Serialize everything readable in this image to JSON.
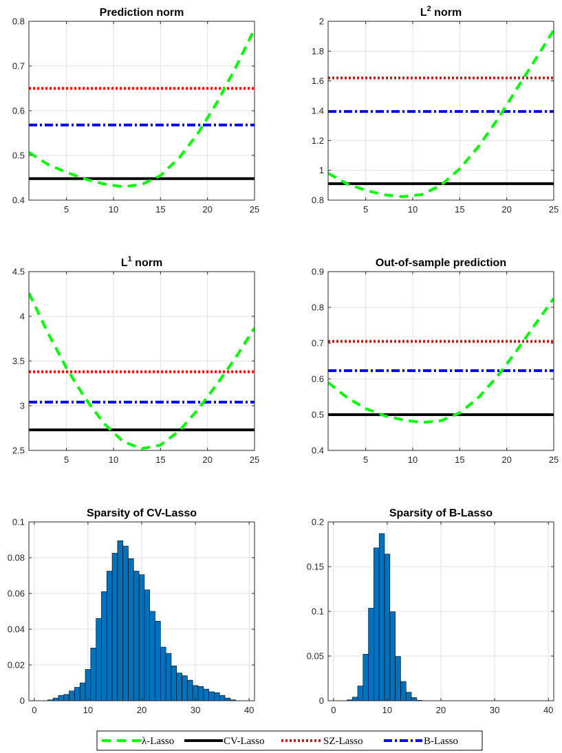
{
  "colors": {
    "lambda_lasso": "#00ff00",
    "cv_lasso": "#000000",
    "sz_lasso": "#ff0000",
    "b_lasso": "#0000ff",
    "histogram_fill": "#0072bd",
    "grid": "#dfdfdf",
    "axis": "#262626"
  },
  "legend": {
    "placement": "bottom-center",
    "entries": [
      {
        "label": "λ-Lasso",
        "style": "dashed",
        "color": "#00ff00"
      },
      {
        "label": "CV-Lasso",
        "style": "solid",
        "color": "#000000"
      },
      {
        "label": "SZ-Lasso",
        "style": "dotted",
        "color": "#ff0000"
      },
      {
        "label": "B-Lasso",
        "style": "dashdot",
        "color": "#0000ff"
      }
    ]
  },
  "chart_data": [
    {
      "id": "prediction-norm",
      "type": "line",
      "title": "Prediction norm",
      "xlim": [
        1,
        25
      ],
      "ylim": [
        0.4,
        0.8
      ],
      "xticks": [
        5,
        10,
        15,
        20,
        25
      ],
      "yticks": [
        0.4,
        0.5,
        0.6,
        0.7,
        0.8
      ],
      "ytick_labels": [
        "0.4",
        "0.5",
        "0.6",
        "0.7",
        "0.8"
      ],
      "grid": true,
      "lambda_curve": {
        "x": [
          1,
          3,
          5,
          7,
          9,
          11,
          13,
          15,
          17,
          19,
          21,
          23,
          25
        ],
        "y": [
          0.507,
          0.48,
          0.462,
          0.447,
          0.436,
          0.43,
          0.435,
          0.455,
          0.495,
          0.55,
          0.618,
          0.697,
          0.783
        ]
      },
      "hlines": {
        "cv_lasso": 0.448,
        "sz_lasso": 0.65,
        "b_lasso": 0.568
      }
    },
    {
      "id": "l2-norm",
      "type": "line",
      "title_base": "L",
      "title_sup": "2",
      "title_rest": " norm",
      "xlim": [
        1,
        25
      ],
      "ylim": [
        0.8,
        2.0
      ],
      "xticks": [
        5,
        10,
        15,
        20,
        25
      ],
      "yticks": [
        0.8,
        1.0,
        1.2,
        1.4,
        1.6,
        1.8,
        2.0
      ],
      "ytick_labels": [
        "0.8",
        "1",
        "1.2",
        "1.4",
        "1.6",
        "1.8",
        "2"
      ],
      "grid": true,
      "lambda_curve": {
        "x": [
          1,
          3,
          5,
          7,
          9,
          11,
          13,
          15,
          17,
          19,
          21,
          23,
          25
        ],
        "y": [
          0.98,
          0.91,
          0.865,
          0.835,
          0.823,
          0.838,
          0.9,
          1.01,
          1.16,
          1.34,
          1.54,
          1.74,
          1.94
        ]
      },
      "hlines": {
        "cv_lasso": 0.91,
        "sz_lasso": 1.62,
        "b_lasso": 1.395
      }
    },
    {
      "id": "l1-norm",
      "type": "line",
      "title_base": "L",
      "title_sup": "1",
      "title_rest": " norm",
      "xlim": [
        1,
        25
      ],
      "ylim": [
        2.5,
        4.5
      ],
      "xticks": [
        5,
        10,
        15,
        20,
        25
      ],
      "yticks": [
        2.5,
        3.0,
        3.5,
        4.0,
        4.5
      ],
      "ytick_labels": [
        "2.5",
        "3",
        "3.5",
        "4",
        "4.5"
      ],
      "grid": true,
      "lambda_curve": {
        "x": [
          1,
          3,
          5,
          7,
          9,
          11,
          13,
          15,
          17,
          19,
          21,
          23,
          25
        ],
        "y": [
          4.26,
          3.82,
          3.42,
          3.08,
          2.8,
          2.6,
          2.52,
          2.56,
          2.72,
          2.96,
          3.24,
          3.54,
          3.87
        ]
      },
      "hlines": {
        "cv_lasso": 2.73,
        "sz_lasso": 3.38,
        "b_lasso": 3.04
      }
    },
    {
      "id": "out-of-sample-prediction",
      "type": "line",
      "title": "Out-of-sample prediction",
      "xlim": [
        1,
        25
      ],
      "ylim": [
        0.4,
        0.9
      ],
      "xticks": [
        5,
        10,
        15,
        20,
        25
      ],
      "yticks": [
        0.4,
        0.5,
        0.6,
        0.7,
        0.8,
        0.9
      ],
      "ytick_labels": [
        "0.4",
        "0.5",
        "0.6",
        "0.7",
        "0.8",
        "0.9"
      ],
      "grid": true,
      "lambda_curve": {
        "x": [
          1,
          3,
          5,
          7,
          9,
          11,
          13,
          15,
          17,
          19,
          21,
          23,
          25
        ],
        "y": [
          0.59,
          0.548,
          0.517,
          0.497,
          0.485,
          0.478,
          0.483,
          0.505,
          0.548,
          0.607,
          0.677,
          0.752,
          0.825
        ]
      },
      "hlines": {
        "cv_lasso": 0.5,
        "sz_lasso": 0.705,
        "b_lasso": 0.623
      }
    },
    {
      "id": "sparsity-cv-lasso",
      "type": "bar",
      "title": "Sparsity of CV-Lasso",
      "xlim": [
        -1,
        41
      ],
      "ylim": [
        0,
        0.1
      ],
      "xticks": [
        0,
        10,
        20,
        30,
        40
      ],
      "yticks": [
        0,
        0.02,
        0.04,
        0.06,
        0.08,
        0.1
      ],
      "ytick_labels": [
        "0",
        "0.02",
        "0.04",
        "0.06",
        "0.08",
        "0.1"
      ],
      "grid": true,
      "bin_start": 3,
      "bin_width": 1,
      "values": [
        0.0005,
        0.0015,
        0.003,
        0.0035,
        0.0055,
        0.0075,
        0.01,
        0.0175,
        0.0295,
        0.046,
        0.061,
        0.0725,
        0.0825,
        0.0895,
        0.0865,
        0.0795,
        0.0725,
        0.0705,
        0.062,
        0.05,
        0.0445,
        0.03,
        0.0265,
        0.0195,
        0.0155,
        0.014,
        0.0115,
        0.0085,
        0.008,
        0.0065,
        0.005,
        0.0045,
        0.003,
        0.0015,
        0.0005
      ]
    },
    {
      "id": "sparsity-b-lasso",
      "type": "bar",
      "title": "Sparsity of B-Lasso",
      "xlim": [
        -1,
        41
      ],
      "ylim": [
        0,
        0.2
      ],
      "xticks": [
        0,
        10,
        20,
        30,
        40
      ],
      "yticks": [
        0,
        0.05,
        0.1,
        0.15,
        0.2
      ],
      "ytick_labels": [
        "0",
        "0.05",
        "0.1",
        "0.15",
        "0.2"
      ],
      "grid": true,
      "bin_start": 3,
      "bin_width": 1,
      "values": [
        0.001,
        0.004,
        0.0165,
        0.052,
        0.1035,
        0.171,
        0.187,
        0.164,
        0.0995,
        0.0495,
        0.0215,
        0.0095,
        0.0035,
        0.0005
      ]
    }
  ]
}
